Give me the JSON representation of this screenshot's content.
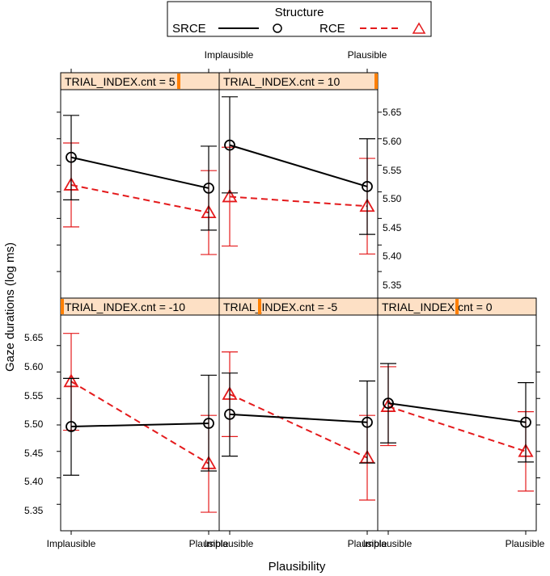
{
  "colors": {
    "srce": "#000000",
    "rce": "#e41a1c",
    "strip_bg": "#fde0c5",
    "strip_marker": "#ff7f00",
    "frame": "#000000"
  },
  "legend": {
    "title": "Structure",
    "srce_label": "SRCE",
    "rce_label": "RCE"
  },
  "chart_data": {
    "type": "line",
    "title": "",
    "xlabel": "Plausibility",
    "ylabel": "Gaze durations (log ms)",
    "categories": [
      "Implausible",
      "Plausible"
    ],
    "ylim": [
      5.3,
      5.7
    ],
    "yticks": [
      "5.35",
      "5.40",
      "5.45",
      "5.50",
      "5.55",
      "5.60",
      "5.65"
    ],
    "series_names": [
      "SRCE",
      "RCE"
    ],
    "panels": [
      {
        "strip": "TRIAL_INDEX.cnt = -10",
        "strip_marker_fraction": 0.0,
        "SRCE": {
          "mean": [
            5.497,
            5.503
          ],
          "lower": [
            5.405,
            5.413
          ],
          "upper": [
            5.588,
            5.594
          ]
        },
        "RCE": {
          "mean": [
            5.582,
            5.427
          ],
          "lower": [
            5.49,
            5.335
          ],
          "upper": [
            5.673,
            5.518
          ]
        }
      },
      {
        "strip": "TRIAL_INDEX.cnt = -5",
        "strip_marker_fraction": 0.25,
        "SRCE": {
          "mean": [
            5.52,
            5.505
          ],
          "lower": [
            5.441,
            5.428
          ],
          "upper": [
            5.598,
            5.583
          ]
        },
        "RCE": {
          "mean": [
            5.558,
            5.438
          ],
          "lower": [
            5.478,
            5.358
          ],
          "upper": [
            5.638,
            5.518
          ]
        }
      },
      {
        "strip": "TRIAL_INDEX.cnt = 0",
        "strip_marker_fraction": 0.5,
        "SRCE": {
          "mean": [
            5.541,
            5.505
          ],
          "lower": [
            5.466,
            5.43
          ],
          "upper": [
            5.616,
            5.58
          ]
        },
        "RCE": {
          "mean": [
            5.535,
            5.45
          ],
          "lower": [
            5.461,
            5.375
          ],
          "upper": [
            5.61,
            5.525
          ]
        }
      },
      {
        "strip": "TRIAL_INDEX.cnt = 5",
        "strip_marker_fraction": 0.75,
        "SRCE": {
          "mean": [
            5.565,
            5.507
          ],
          "lower": [
            5.485,
            5.428
          ],
          "upper": [
            5.644,
            5.586
          ]
        },
        "RCE": {
          "mean": [
            5.513,
            5.461
          ],
          "lower": [
            5.434,
            5.382
          ],
          "upper": [
            5.592,
            5.54
          ]
        }
      },
      {
        "strip": "TRIAL_INDEX.cnt = 10",
        "strip_marker_fraction": 1.0,
        "SRCE": {
          "mean": [
            5.588,
            5.51
          ],
          "lower": [
            5.498,
            5.42
          ],
          "upper": [
            5.679,
            5.6
          ]
        },
        "RCE": {
          "mean": [
            5.491,
            5.473
          ],
          "lower": [
            5.398,
            5.383
          ],
          "upper": [
            5.584,
            5.563
          ]
        }
      }
    ]
  }
}
